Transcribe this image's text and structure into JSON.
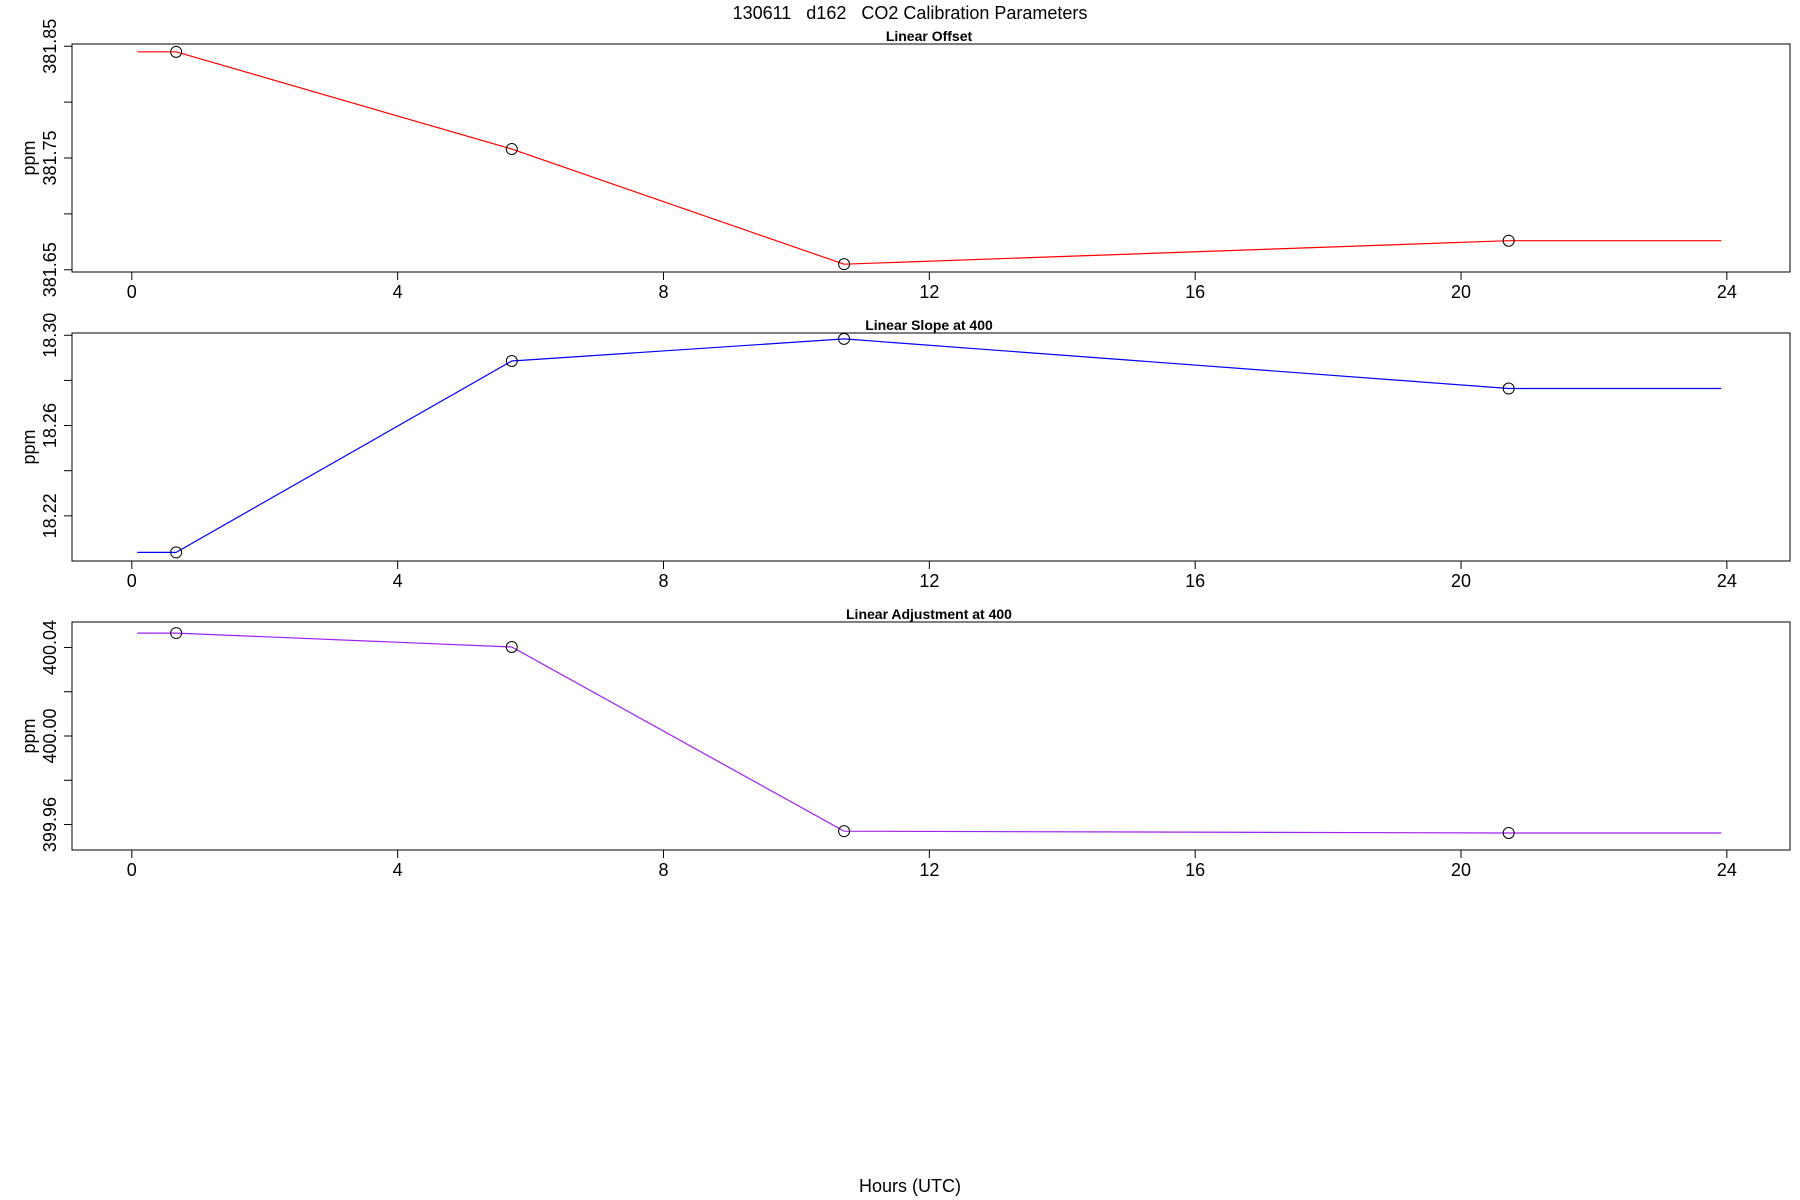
{
  "figure": {
    "title": "130611   d162   CO2 Calibration Parameters",
    "xlabel": "Hours (UTC)"
  },
  "chart_data": [
    {
      "type": "line",
      "title": "Linear Offset",
      "ylabel": "ppm",
      "xlim": [
        -0.9,
        24.95
      ],
      "ylim": [
        381.648,
        381.852
      ],
      "xticks": [
        0,
        4,
        8,
        12,
        16,
        20,
        24
      ],
      "yticks": [
        381.65,
        381.75,
        381.85
      ],
      "yticks_minor": [
        381.7,
        381.8
      ],
      "ytick_labels": [
        "381.65",
        "381.75",
        "381.85"
      ],
      "color": "#ff0000",
      "series": [
        {
          "x": [
            0.083,
            0.667,
            5.717,
            10.717,
            20.717,
            23.917
          ],
          "y": [
            381.845,
            381.845,
            381.758,
            381.655,
            381.676,
            381.676
          ],
          "marker_indices": [
            1,
            2,
            3,
            4
          ]
        }
      ]
    },
    {
      "type": "line",
      "title": "Linear Slope at 400",
      "ylabel": "ppm",
      "xlim": [
        -0.9,
        24.95
      ],
      "ylim": [
        18.2,
        18.301
      ],
      "xticks": [
        0,
        4,
        8,
        12,
        16,
        20,
        24
      ],
      "yticks": [
        18.22,
        18.26,
        18.3
      ],
      "yticks_minor": [
        18.24,
        18.28
      ],
      "ytick_labels": [
        "18.22",
        "18.26",
        "18.30"
      ],
      "color": "#0000ff",
      "series": [
        {
          "x": [
            0.083,
            0.667,
            5.717,
            10.717,
            20.717,
            23.917
          ],
          "y": [
            18.2038,
            18.2038,
            18.2886,
            18.2984,
            18.2764,
            18.2764
          ],
          "marker_indices": [
            1,
            2,
            3,
            4
          ]
        }
      ]
    },
    {
      "type": "line",
      "title": "Linear Adjustment at 400",
      "ylabel": "ppm",
      "xlim": [
        -0.9,
        24.95
      ],
      "ylim": [
        399.9485,
        400.0515
      ],
      "xticks": [
        0,
        4,
        8,
        12,
        16,
        20,
        24
      ],
      "yticks": [
        399.96,
        400.0,
        400.04
      ],
      "yticks_minor": [
        399.98,
        400.02
      ],
      "ytick_labels": [
        "399.96",
        "400.00",
        "400.04"
      ],
      "color": "#a020f0",
      "series": [
        {
          "x": [
            0.083,
            0.667,
            5.717,
            10.717,
            20.717,
            23.917
          ],
          "y": [
            400.0465,
            400.0465,
            400.0402,
            399.957,
            399.9562,
            399.9562
          ],
          "marker_indices": [
            1,
            2,
            3,
            4
          ]
        }
      ]
    }
  ]
}
